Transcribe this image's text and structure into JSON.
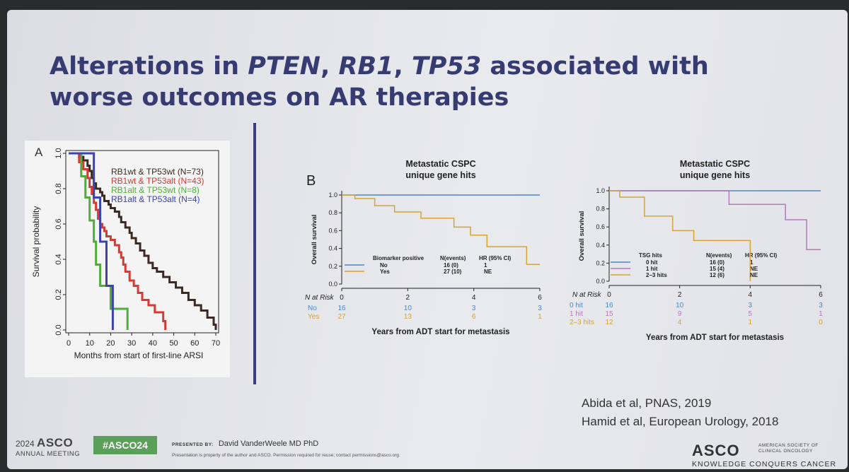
{
  "slide": {
    "title_line1_pre": "Alterations in ",
    "title_gene1": "PTEN",
    "title_sep1": ", ",
    "title_gene2": "RB1",
    "title_sep2": ", ",
    "title_gene3": "TP53",
    "title_line1_post": " associated with",
    "title_line2": "worse outcomes on AR therapies"
  },
  "references": [
    "Abida et al, PNAS, 2019",
    "Hamid et al, European Urology, 2018"
  ],
  "footer": {
    "year": "2024",
    "asco": "ASCO",
    "annual": "ANNUAL MEETING",
    "hashtag": "#ASCO24",
    "presented_label": "PRESENTED BY:",
    "presenter": "David VanderWeele MD PhD",
    "disclaimer": "Presentation is property of the author and ASCO. Permission required for reuse; contact permissions@asco.org.",
    "asco_logo": "ASCO",
    "society_l1": "AMERICAN SOCIETY OF",
    "society_l2": "CLINICAL ONCOLOGY",
    "motto": "KNOWLEDGE CONQUERS CANCER"
  },
  "colors": {
    "title": "#363b72",
    "divider": "#3a3e7a",
    "hashtag_bg": "#5aa05a"
  },
  "chart_data": [
    {
      "type": "line",
      "panel_label": "A",
      "xlabel": "Months from start of first-line ARSI",
      "ylabel": "Survival probability",
      "xlim": [
        0,
        70
      ],
      "ylim": [
        0,
        1
      ],
      "xticks": [
        "0",
        "10",
        "20",
        "30",
        "40",
        "50",
        "60",
        "70"
      ],
      "yticks": [
        "0.0",
        "0.2",
        "0.4",
        "0.6",
        "0.8",
        "1.0"
      ],
      "legend_position": "top-right",
      "series": [
        {
          "name": "RB1wt & TP53wt (N=73)",
          "color": "#3b2a24",
          "points": [
            [
              0,
              1
            ],
            [
              5,
              0.98
            ],
            [
              7,
              0.96
            ],
            [
              9,
              0.93
            ],
            [
              10,
              0.9
            ],
            [
              11,
              0.86
            ],
            [
              12,
              0.83
            ],
            [
              13,
              0.8
            ],
            [
              15,
              0.78
            ],
            [
              16,
              0.76
            ],
            [
              17,
              0.73
            ],
            [
              19,
              0.71
            ],
            [
              20,
              0.69
            ],
            [
              22,
              0.67
            ],
            [
              24,
              0.64
            ],
            [
              25,
              0.61
            ],
            [
              27,
              0.58
            ],
            [
              29,
              0.55
            ],
            [
              30,
              0.52
            ],
            [
              32,
              0.49
            ],
            [
              34,
              0.45
            ],
            [
              36,
              0.42
            ],
            [
              38,
              0.38
            ],
            [
              40,
              0.35
            ],
            [
              42,
              0.33
            ],
            [
              45,
              0.3
            ],
            [
              48,
              0.27
            ],
            [
              51,
              0.24
            ],
            [
              54,
              0.21
            ],
            [
              57,
              0.17
            ],
            [
              60,
              0.14
            ],
            [
              63,
              0.11
            ],
            [
              66,
              0.07
            ],
            [
              69,
              0.03
            ],
            [
              70,
              0.0
            ]
          ]
        },
        {
          "name": "RB1wt & TP53alt (N=43)",
          "color": "#d63a32",
          "points": [
            [
              0,
              1
            ],
            [
              5,
              0.95
            ],
            [
              7,
              0.91
            ],
            [
              9,
              0.86
            ],
            [
              10,
              0.81
            ],
            [
              11,
              0.77
            ],
            [
              12,
              0.72
            ],
            [
              13,
              0.68
            ],
            [
              14,
              0.63
            ],
            [
              15,
              0.6
            ],
            [
              16,
              0.58
            ],
            [
              17,
              0.56
            ],
            [
              18,
              0.53
            ],
            [
              20,
              0.51
            ],
            [
              22,
              0.48
            ],
            [
              24,
              0.44
            ],
            [
              25,
              0.41
            ],
            [
              26,
              0.37
            ],
            [
              27,
              0.33
            ],
            [
              29,
              0.28
            ],
            [
              31,
              0.25
            ],
            [
              33,
              0.21
            ],
            [
              35,
              0.17
            ],
            [
              38,
              0.14
            ],
            [
              41,
              0.1
            ],
            [
              45,
              0.05
            ],
            [
              46,
              0.0
            ]
          ]
        },
        {
          "name": "RB1alt & TP53wt (N=8)",
          "color": "#4fae3a",
          "points": [
            [
              0,
              1
            ],
            [
              6,
              0.87
            ],
            [
              8,
              0.75
            ],
            [
              10,
              0.62
            ],
            [
              12,
              0.5
            ],
            [
              13,
              0.37
            ],
            [
              15,
              0.25
            ],
            [
              20,
              0.12
            ],
            [
              28,
              0.0
            ]
          ]
        },
        {
          "name": "RB1alt & TP53alt (N=4)",
          "color": "#3b43b2",
          "points": [
            [
              0,
              1
            ],
            [
              11,
              1
            ],
            [
              12,
              0.75
            ],
            [
              15,
              0.5
            ],
            [
              18,
              0.25
            ],
            [
              21,
              0.0
            ]
          ]
        }
      ]
    },
    {
      "type": "line",
      "panel_label": "B",
      "title_lines": [
        "Metastatic CSPC",
        "unique gene hits"
      ],
      "xlabel": "Years from ADT start for metastasis",
      "ylabel": "Overall survival",
      "xlim": [
        0,
        6
      ],
      "ylim": [
        0,
        1
      ],
      "xticks": [
        "0",
        "2",
        "4",
        "6"
      ],
      "yticks": [
        "0.0",
        "0.2",
        "0.4",
        "0.6",
        "0.8",
        "1.0"
      ],
      "legend_header": [
        "Biomarker positive",
        "N(events)",
        "HR (95% CI)"
      ],
      "risk_header": "N at Risk",
      "series": [
        {
          "name": "No",
          "color": "#4a86c8",
          "legend_n": "16 (0)",
          "legend_hr": "1",
          "at_risk": [
            "16",
            "10",
            "3",
            "3"
          ],
          "points": [
            [
              0,
              1
            ],
            [
              6,
              1
            ]
          ]
        },
        {
          "name": "Yes",
          "color": "#d3a437",
          "legend_n": "27 (10)",
          "legend_hr": "NE",
          "at_risk": [
            "27",
            "13",
            "6",
            "1"
          ],
          "points": [
            [
              0,
              1
            ],
            [
              0.4,
              0.96
            ],
            [
              1,
              0.88
            ],
            [
              1.6,
              0.81
            ],
            [
              2.4,
              0.74
            ],
            [
              3.4,
              0.64
            ],
            [
              3.9,
              0.55
            ],
            [
              4.4,
              0.42
            ],
            [
              5.6,
              0.22
            ],
            [
              6,
              0.22
            ]
          ]
        }
      ]
    },
    {
      "type": "line",
      "title_lines": [
        "Metastatic CSPC",
        "unique gene hits"
      ],
      "xlabel": "Years from ADT start for metastasis",
      "ylabel": "Overall survival",
      "xlim": [
        0,
        6
      ],
      "ylim": [
        0,
        1
      ],
      "xticks": [
        "0",
        "2",
        "4",
        "6"
      ],
      "yticks": [
        "0.0",
        "0.2",
        "0.4",
        "0.6",
        "0.8",
        "1.0"
      ],
      "legend_header": [
        "TSG hits",
        "N(events)",
        "HR (95% CI)"
      ],
      "risk_header": "N at Risk",
      "series": [
        {
          "name": "0 hit",
          "color": "#4a86c8",
          "legend_n": "16 (0)",
          "legend_hr": "1",
          "at_risk": [
            "16",
            "10",
            "3",
            "3"
          ],
          "points": [
            [
              0,
              1
            ],
            [
              6,
              1
            ]
          ]
        },
        {
          "name": "1 hit",
          "color": "#b47ab7",
          "legend_n": "15 (4)",
          "legend_hr": "NE",
          "at_risk": [
            "15",
            "9",
            "5",
            "1"
          ],
          "points": [
            [
              0,
              1
            ],
            [
              3.4,
              1
            ],
            [
              3.4,
              0.85
            ],
            [
              5.0,
              0.85
            ],
            [
              5.0,
              0.68
            ],
            [
              5.6,
              0.68
            ],
            [
              5.6,
              0.35
            ],
            [
              6,
              0.35
            ]
          ]
        },
        {
          "name": "2–3 hits",
          "color": "#d3a437",
          "legend_n": "12 (6)",
          "legend_hr": "NE",
          "at_risk": [
            "12",
            "4",
            "1",
            "0"
          ],
          "points": [
            [
              0,
              1
            ],
            [
              0.3,
              1
            ],
            [
              0.3,
              0.93
            ],
            [
              1,
              0.93
            ],
            [
              1,
              0.72
            ],
            [
              1.8,
              0.72
            ],
            [
              1.8,
              0.56
            ],
            [
              2.4,
              0.56
            ],
            [
              2.4,
              0.45
            ],
            [
              4,
              0.45
            ],
            [
              4,
              0.0
            ]
          ]
        }
      ]
    }
  ]
}
